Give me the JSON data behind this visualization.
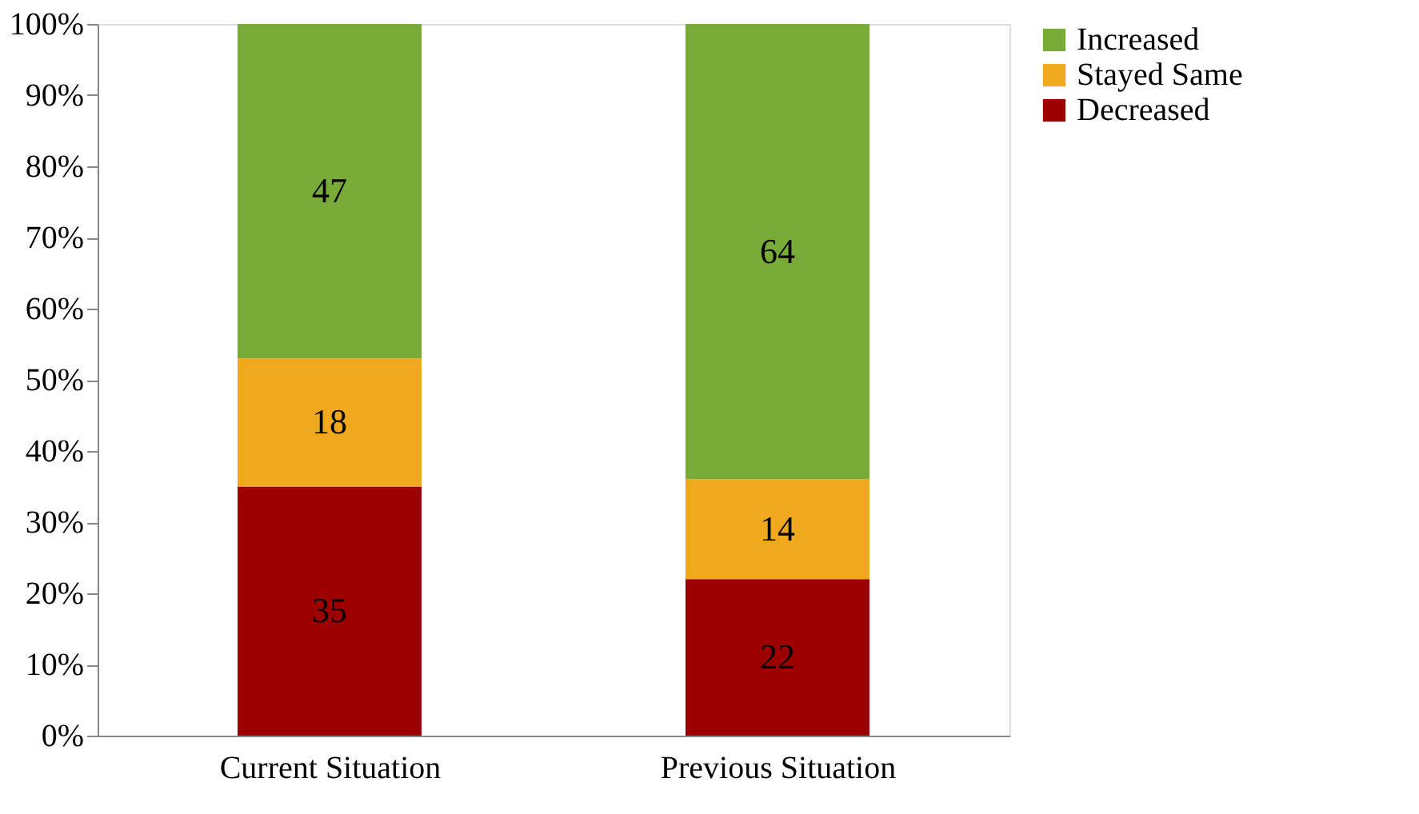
{
  "chart_data": {
    "type": "bar",
    "stacked": true,
    "categories": [
      "Current Situation",
      "Previous Situation"
    ],
    "series": [
      {
        "name": "Decreased",
        "color": "#9c0000",
        "values": [
          35,
          22
        ]
      },
      {
        "name": "Stayed Same",
        "color": "#f0a81c",
        "values": [
          18,
          14
        ]
      },
      {
        "name": "Increased",
        "color": "#78ab38",
        "values": [
          47,
          64
        ]
      }
    ],
    "ylim": [
      0,
      100
    ],
    "yticks": [
      {
        "value": 0,
        "label": "0%"
      },
      {
        "value": 10,
        "label": "10%"
      },
      {
        "value": 20,
        "label": "20%"
      },
      {
        "value": 30,
        "label": "30%"
      },
      {
        "value": 40,
        "label": "40%"
      },
      {
        "value": 50,
        "label": "50%"
      },
      {
        "value": 60,
        "label": "60%"
      },
      {
        "value": 70,
        "label": "70%"
      },
      {
        "value": 80,
        "label": "80%"
      },
      {
        "value": 90,
        "label": "90%"
      },
      {
        "value": 100,
        "label": "100%"
      }
    ],
    "data_labels": true,
    "legend": "right",
    "grid": false
  }
}
